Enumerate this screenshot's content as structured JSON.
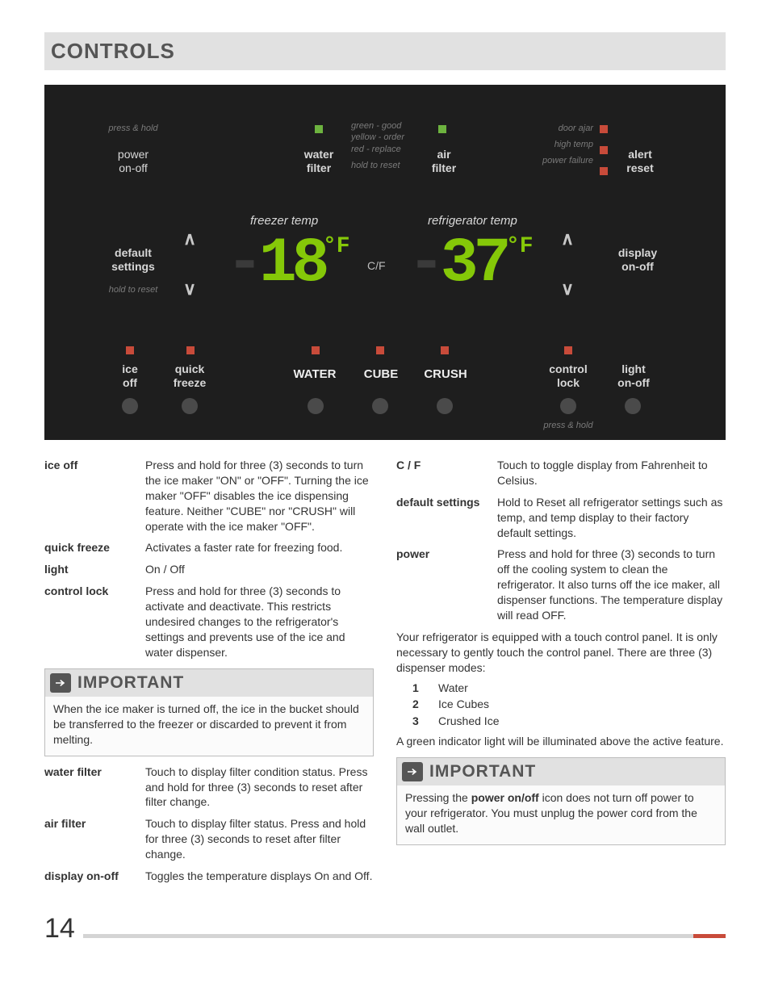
{
  "title": "CONTROLS",
  "panel": {
    "press_hold_top": "press & hold",
    "power_onoff": "power\non-off",
    "water_filter": "water\nfilter",
    "wf_lines": [
      "green - good",
      "yellow - order",
      "red - replace",
      "hold to reset"
    ],
    "air_filter": "air\nfilter",
    "alerts": {
      "door": "door ajar",
      "high": "high temp",
      "pf": "power failure"
    },
    "alert_reset": "alert\nreset",
    "default_settings": "default\nsettings",
    "hold_to_reset": "hold to reset",
    "freezer_temp": "freezer temp",
    "refrig_temp": "refrigerator temp",
    "freezer_val": "-18",
    "fridge_val": "-37",
    "degF": "°F",
    "cf": "C/F",
    "display_onoff": "display\non-off",
    "row3": {
      "ice_off": "ice\noff",
      "quick_freeze": "quick\nfreeze",
      "water": "WATER",
      "cube": "CUBE",
      "crush": "CRUSH",
      "control_lock": "control\nlock",
      "light": "light\non-off"
    },
    "press_hold_bot": "press & hold",
    "colors": {
      "green": "#6db33f",
      "red": "#c84b3a",
      "seg": "#85c808",
      "circ": "#4a4a4a"
    }
  },
  "left_defs": [
    {
      "t": "ice off",
      "d": "Press and hold for three (3) seconds to turn the ice maker \"ON\" or \"OFF\". Turning the ice maker \"OFF\" disables the ice dispensing feature. Neither \"CUBE\" nor \"CRUSH\" will operate with the ice maker \"OFF\"."
    },
    {
      "t": "quick freeze",
      "d": "Activates a faster rate for freezing food."
    },
    {
      "t": "light",
      "d": "On / Off"
    },
    {
      "t": "control lock",
      "d": "Press and hold for three (3) seconds to activate and deactivate. This restricts undesired changes to the refrigerator's settings and prevents use of the ice and water dispenser."
    }
  ],
  "left_important": {
    "title": "IMPORTANT",
    "body": "When the ice maker is turned off, the ice in the bucket should be transferred to the freezer or discarded to prevent it from melting."
  },
  "left_defs2": [
    {
      "t": "water filter",
      "d": "Touch to display filter condition status. Press and hold for three (3) seconds to reset after filter change."
    },
    {
      "t": "air filter",
      "d": "Touch to display filter status. Press and hold for three (3) seconds to reset after filter change."
    },
    {
      "t": "display on-off",
      "d": "Toggles the temperature displays On and Off."
    }
  ],
  "right_defs": [
    {
      "t": "C / F",
      "d": "Touch to toggle display from Fahrenheit to Celsius."
    },
    {
      "t": "default settings",
      "d": "Hold to Reset all refrigerator settings such as temp, and temp display to their factory default settings."
    },
    {
      "t": "power",
      "d": "Press and hold for three (3) seconds to turn off the cooling system  to clean the refrigerator. It also turns off the ice maker, all dispenser functions. The temperature display will read OFF."
    }
  ],
  "right_para": "Your refrigerator is equipped with a touch control panel. It is only necessary to gently touch the control panel. There are three (3) dispenser modes:",
  "modes": [
    {
      "n": "1",
      "t": "Water"
    },
    {
      "n": "2",
      "t": "Ice Cubes"
    },
    {
      "n": "3",
      "t": "Crushed Ice"
    }
  ],
  "right_para2": "A green indicator light will be illuminated above the active feature.",
  "right_important": {
    "title": "IMPORTANT",
    "body_pre": "Pressing the ",
    "body_bold": "power on/off",
    "body_post": " icon does not turn off power to your refrigerator. You must unplug the power cord from the wall outlet."
  },
  "page_number": "14"
}
